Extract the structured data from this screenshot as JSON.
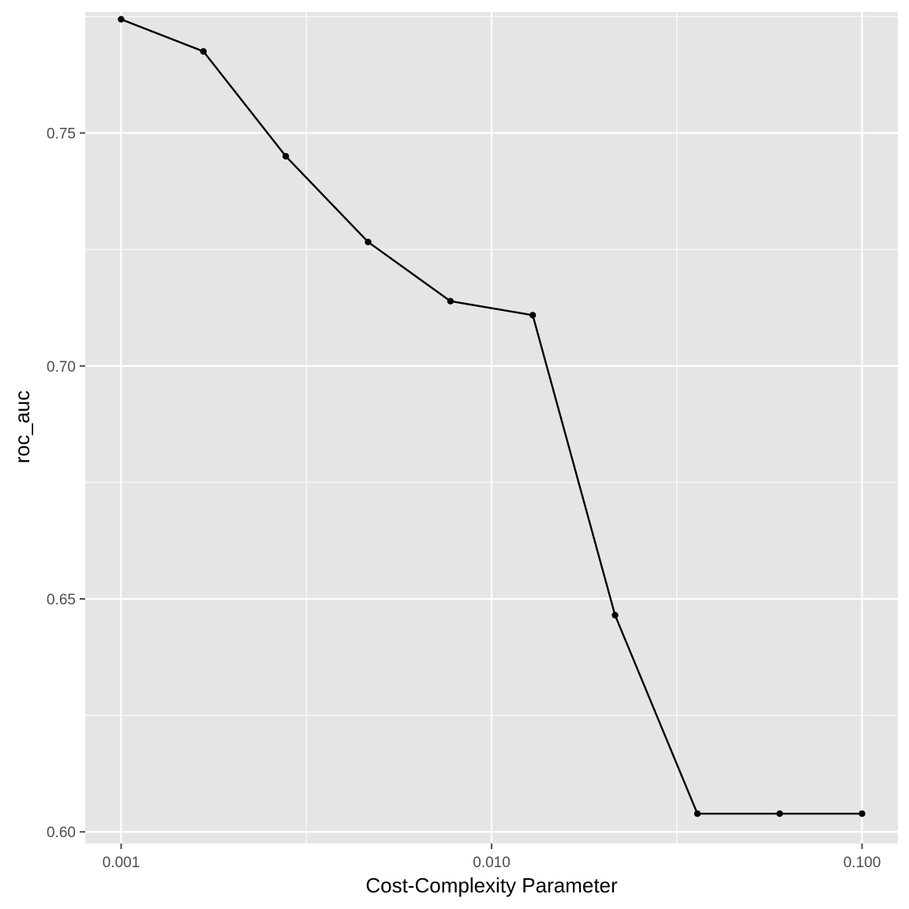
{
  "chart_data": {
    "type": "line",
    "title": "",
    "xlabel": "Cost-Complexity Parameter",
    "ylabel": "roc_auc",
    "x_scale": "log10",
    "xlim": [
      0.0008,
      0.125
    ],
    "ylim": [
      0.5975,
      0.776
    ],
    "x_ticks": [
      0.001,
      0.01,
      0.1
    ],
    "x_tick_labels": [
      "0.001",
      "0.010",
      "0.100"
    ],
    "y_ticks": [
      0.6,
      0.65,
      0.7,
      0.75
    ],
    "y_tick_labels": [
      "0.60",
      "0.65",
      "0.70",
      "0.75"
    ],
    "grid": true,
    "legend": "none",
    "colors": {
      "panel": "#e5e5e5",
      "grid": "#ffffff",
      "line": "#000000",
      "tick": "#4d4d4d"
    },
    "series": [
      {
        "x": [
          0.001,
          0.001668,
          0.002783,
          0.004642,
          0.007743,
          0.012915,
          0.021544,
          0.035938,
          0.059948,
          0.1
        ],
        "values": [
          0.7744,
          0.7675,
          0.745,
          0.7266,
          0.7139,
          0.7109,
          0.6465,
          0.6039,
          0.6039,
          0.6039
        ]
      }
    ]
  }
}
